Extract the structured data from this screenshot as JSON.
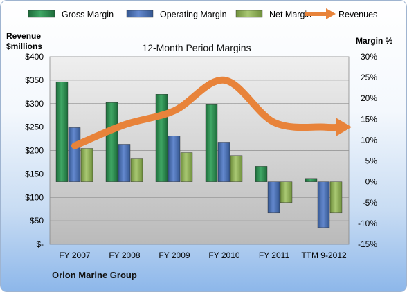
{
  "chart_data": {
    "type": "bar",
    "title": "12-Month Period Margins",
    "categories": [
      "FY 2007",
      "FY 2008",
      "FY 2009",
      "FY 2010",
      "FY 2011",
      "TTM 9-2012"
    ],
    "series": [
      {
        "name": "Gross Margin",
        "axis": "right",
        "type": "bar",
        "color": "#2f8a52",
        "values": [
          24.0,
          19.0,
          21.0,
          18.5,
          3.7,
          0.8
        ]
      },
      {
        "name": "Operating Margin",
        "axis": "right",
        "type": "bar",
        "color": "#4a6fb8",
        "values": [
          13.0,
          9.0,
          11.0,
          9.5,
          -7.5,
          -11.0
        ]
      },
      {
        "name": "Net Margin",
        "axis": "right",
        "type": "bar",
        "color": "#92b65a",
        "values": [
          8.0,
          5.5,
          7.0,
          6.3,
          -5.0,
          -7.5
        ]
      },
      {
        "name": "Revenues",
        "axis": "left",
        "type": "arrow",
        "color": "#e8833a",
        "values": [
          210,
          255,
          285,
          350,
          260,
          250
        ]
      }
    ],
    "left_axis": {
      "title": [
        "Revenue",
        "$millions"
      ],
      "range": [
        0,
        400
      ],
      "ticks": [
        "$-",
        "$50",
        "$100",
        "$150",
        "$200",
        "$250",
        "$300",
        "$350",
        "$400"
      ]
    },
    "right_axis": {
      "title": "Margin %",
      "range": [
        -15,
        30
      ],
      "ticks": [
        "-15%",
        "-10%",
        "-5%",
        "0%",
        "5%",
        "10%",
        "15%",
        "20%",
        "25%",
        "30%"
      ]
    },
    "grid": true,
    "legend_position": "top"
  },
  "footer": {
    "company": "Orion Marine Group"
  },
  "colors": {
    "plot_bg_top": "#ececec",
    "plot_bg_bottom": "#bdbdbd",
    "grid": "#8c8c8c"
  }
}
